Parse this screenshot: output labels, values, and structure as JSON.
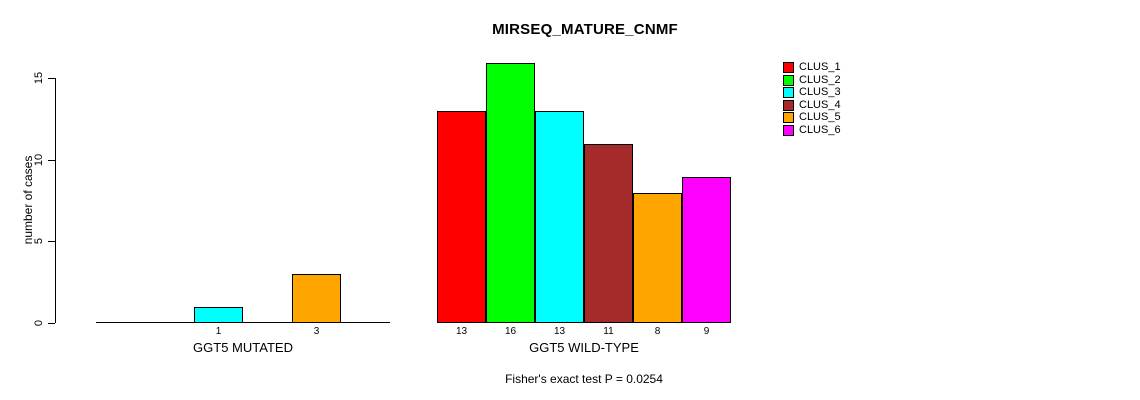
{
  "chart_data": {
    "type": "bar",
    "title": "MIRSEQ_MATURE_CNMF",
    "ylabel": "number of cases",
    "ylim": [
      0,
      16
    ],
    "yticks": [
      0,
      5,
      10,
      15
    ],
    "grid": false,
    "legend_position": "top-right",
    "series": [
      "CLUS_1",
      "CLUS_2",
      "CLUS_3",
      "CLUS_4",
      "CLUS_5",
      "CLUS_6"
    ],
    "colors": [
      "#FF0000",
      "#00FF00",
      "#00FFFF",
      "#A52A2A",
      "#FFA500",
      "#FF00FF"
    ],
    "groups": [
      {
        "label": "GGT5 MUTATED",
        "values": [
          0,
          0,
          1,
          0,
          3,
          0
        ],
        "bar_labels": [
          "",
          "",
          "1",
          "",
          "3",
          ""
        ]
      },
      {
        "label": "GGT5 WILD-TYPE",
        "values": [
          13,
          16,
          13,
          11,
          8,
          9
        ],
        "bar_labels": [
          "13",
          "16",
          "13",
          "11",
          "8",
          "9"
        ]
      }
    ],
    "annotation": "Fisher's exact test P = 0.0254"
  }
}
